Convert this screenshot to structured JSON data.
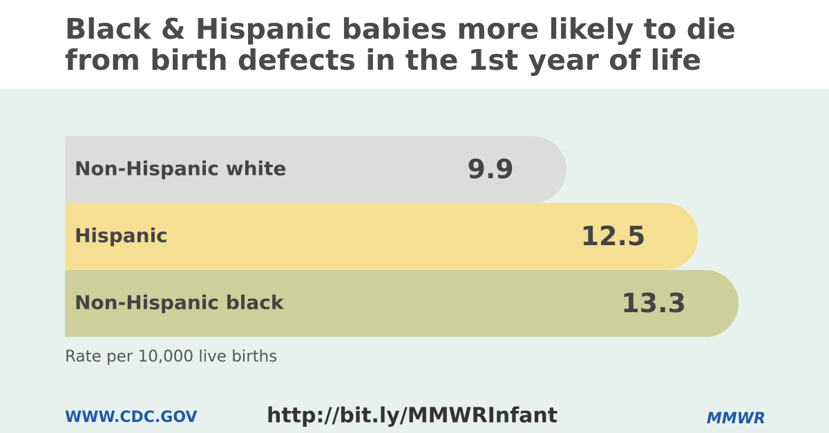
{
  "chart_data": {
    "type": "bar",
    "orientation": "horizontal",
    "title": "Black & Hispanic babies more likely to die from birth defects in the 1st year of life",
    "categories": [
      "Non-Hispanic white",
      "Hispanic",
      "Non-Hispanic black"
    ],
    "values": [
      9.9,
      12.5,
      13.3
    ],
    "colors": [
      "#dcdcdc",
      "#f5df93",
      "#cdd09b"
    ],
    "note": "Rate per 10,000 live births"
  },
  "footer": {
    "site": "WWW.CDC.GOV",
    "link": "http://bit.ly/MMWRInfant",
    "brand": "MMWR"
  }
}
